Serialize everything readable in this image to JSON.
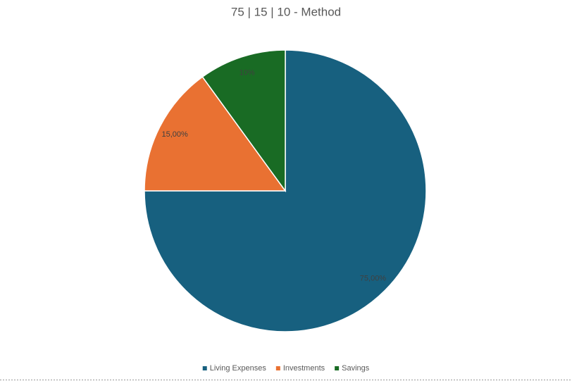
{
  "chart_data": {
    "type": "pie",
    "title": "75 | 15 | 10 - Method",
    "categories": [
      "Living Expenses",
      "Investments",
      "Savings"
    ],
    "values": [
      75,
      15,
      10
    ],
    "value_labels": [
      "75,00%",
      "15,00%",
      "10%"
    ],
    "colors": [
      "#17607f",
      "#e97132",
      "#196b24"
    ],
    "legend": "bottom"
  }
}
